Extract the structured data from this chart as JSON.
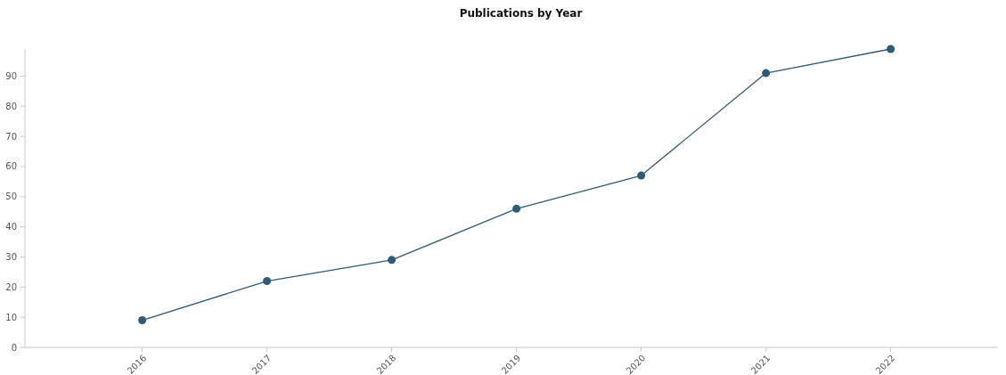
{
  "chart_data": {
    "type": "line",
    "title": "Publications by Year",
    "x": [
      2016,
      2017,
      2018,
      2019,
      2020,
      2021,
      2022
    ],
    "series": [
      {
        "color": "#2f5a78",
        "values": [
          9,
          22,
          29,
          46,
          57,
          91,
          99
        ]
      }
    ],
    "xlim": [
      2015.06,
      2022.86
    ],
    "xticks": [
      2016,
      2017,
      2018,
      2019,
      2020,
      2021,
      2022
    ],
    "ylim": [
      0,
      99
    ],
    "yticks": [
      0,
      10,
      20,
      30,
      40,
      50,
      60,
      70,
      80,
      90
    ],
    "marker": "circle",
    "grid": false
  }
}
